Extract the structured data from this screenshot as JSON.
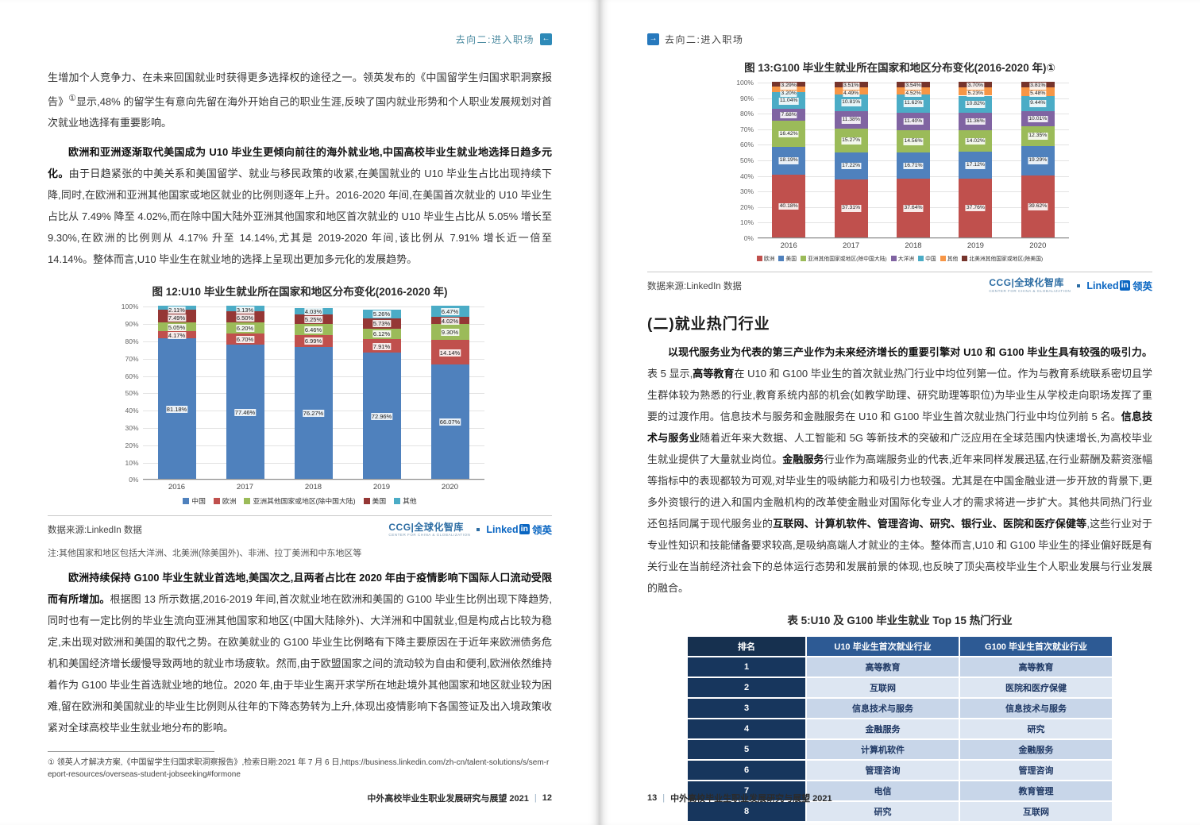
{
  "header": {
    "label": "去向二:进入职场"
  },
  "left_page": {
    "para1": [
      {
        "text": "生增加个人竞争力、在未来回国就业时获得更多选择权的途径之一。领英发布的《中国留学生归国求职洞察报告》",
        "bold": false
      },
      {
        "text": "①",
        "bold": false,
        "sup": true
      },
      {
        "text": "显示,48% 的留学生有意向先留在海外开始自己的职业生涯,反映了国内就业形势和个人职业发展规划对首次就业地选择有重要影响。",
        "bold": false
      }
    ],
    "para2": [
      {
        "text": "欧洲和亚洲逐渐取代美国成为 U10 毕业生更倾向前往的海外就业地,中国高校毕业生就业地选择日趋多元化。",
        "bold": true
      },
      {
        "text": "由于日趋紧张的中美关系和美国留学、就业与移民政策的收紧,在美国就业的 U10 毕业生占比出现持续下降,同时,在欧洲和亚洲其他国家或地区就业的比例则逐年上升。2016-2020 年间,在美国首次就业的 U10 毕业生占比从 7.49% 降至 4.02%,而在除中国大陆外亚洲其他国家和地区首次就业的 U10 毕业生占比从 5.05% 增长至 9.30%,在欧洲的比例则从 4.17% 升至 14.14%,尤其是 2019-2020 年间,该比例从 7.91% 增长近一倍至 14.14%。整体而言,U10 毕业生在就业地的选择上呈现出更加多元化的发展趋势。",
        "bold": false
      }
    ],
    "note": "注:其他国家和地区包括大洋洲、北美洲(除美国外)、非洲、拉丁美洲和中东地区等",
    "para3": [
      {
        "text": "欧洲持续保持 G100 毕业生就业首选地,美国次之,且两者占比在 2020 年由于疫情影响下国际人口流动受限而有所增加。",
        "bold": true
      },
      {
        "text": "根据图 13 所示数据,2016-2019 年间,首次就业地在欧洲和美国的 G100 毕业生比例出现下降趋势,同时也有一定比例的毕业生流向亚洲其他国家和地区(中国大陆除外)、大洋洲和中国就业,但是构成占比较为稳定,未出现对欧洲和美国的取代之势。在欧美就业的 G100 毕业生比例略有下降主要原因在于近年来欧洲债务危机和美国经济增长缓慢导致两地的就业市场疲软。然而,由于欧盟国家之间的流动较为自由和便利,欧洲依然维持着作为 G100 毕业生首选就业地的地位。2020 年,由于毕业生离开求学所在地赴境外其他国家和地区就业较为困难,留在欧洲和美国就业的毕业生比例则从往年的下降态势转为上升,体现出疫情影响下各国签证及出入境政策收紧对全球高校毕业生就业地分布的影响。",
        "bold": false
      }
    ],
    "source": "数据来源:LinkedIn 数据",
    "footnote": "① 领英人才解决方案,《中国留学生归国求职洞察报告》,检索日期:2021 年 7 月 6 日,https://business.linkedin.com/zh-cn/talent-solutions/s/sem-report-resources/overseas-student-jobseeking#formone",
    "footer_title": "中外高校毕业生职业发展研究与展望 2021",
    "footer_page": "12"
  },
  "right_page": {
    "heading": "(二)就业热门行业",
    "para": [
      {
        "text": "以现代服务业为代表的第三产业作为未来经济增长的重要引擎对 U10 和 G100 毕业生具有较强的吸引力。",
        "bold": true
      },
      {
        "text": "表 5 显示,",
        "bold": false
      },
      {
        "text": "高等教育",
        "bold": true
      },
      {
        "text": "在 U10 和 G100 毕业生的首次就业热门行业中均位列第一位。作为与教育系统联系密切且学生群体较为熟悉的行业,教育系统内部的机会(如教学助理、研究助理等职位)为毕业生从学校走向职场发挥了重要的过渡作用。信息技术与服务和金融服务在 U10 和 G100 毕业生首次就业热门行业中均位列前 5 名。",
        "bold": false
      },
      {
        "text": "信息技术与服务业",
        "bold": true
      },
      {
        "text": "随着近年来大数据、人工智能和 5G 等新技术的突破和广泛应用在全球范围内快速增长,为高校毕业生就业提供了大量就业岗位。",
        "bold": false
      },
      {
        "text": "金融服务",
        "bold": true
      },
      {
        "text": "行业作为高端服务业的代表,近年来同样发展迅猛,在行业薪酬及薪资涨幅等指标中的表现都较为可观,对毕业生的吸纳能力和吸引力也较强。尤其是在中国金融业进一步开放的背景下,更多外资银行的进入和国内金融机构的改革使金融业对国际化专业人才的需求将进一步扩大。其他共同热门行业还包括同属于现代服务业的",
        "bold": false
      },
      {
        "text": "互联网、计算机软件、管理咨询、研究、银行业、医院和医疗保健等",
        "bold": true
      },
      {
        "text": ",这些行业对于专业性知识和技能储备要求较高,是吸纳高端人才就业的主体。整体而言,U10 和 G100 毕业生的择业偏好既是有关行业在当前经济社会下的总体运行态势和发展前景的体现,也反映了顶尖高校毕业生个人职业发展与行业发展的融合。",
        "bold": false
      }
    ],
    "source": "数据来源:LinkedIn 数据",
    "table": {
      "title": "表 5:U10 及 G100 毕业生就业 Top 15 热门行业",
      "headers": [
        "排名",
        "U10 毕业生首次就业行业",
        "G100 毕业生首次就业行业"
      ],
      "rows": [
        [
          "1",
          "高等教育",
          "高等教育"
        ],
        [
          "2",
          "互联网",
          "医院和医疗保健"
        ],
        [
          "3",
          "信息技术与服务",
          "信息技术与服务"
        ],
        [
          "4",
          "金融服务",
          "研究"
        ],
        [
          "5",
          "计算机软件",
          "金融服务"
        ],
        [
          "6",
          "管理咨询",
          "管理咨询"
        ],
        [
          "7",
          "电信",
          "教育管理"
        ],
        [
          "8",
          "研究",
          "互联网"
        ]
      ]
    },
    "footer_title": "中外高校毕业生职业发展研究与展望 2021",
    "footer_page": "13"
  },
  "logos": {
    "ccg_main": "CCG|全球化智库",
    "ccg_sub": "CENTER FOR CHINA & GLOBALIZATION",
    "li_word": "Linked",
    "li_in": "in",
    "li_cn": "领英"
  },
  "chart_data": [
    {
      "type": "bar",
      "stacked": true,
      "title": "图 12:U10 毕业生就业所在国家和地区分布变化(2016-2020 年)",
      "categories": [
        "2016",
        "2017",
        "2018",
        "2019",
        "2020"
      ],
      "series": [
        {
          "name": "中国",
          "color": "#4f81bd",
          "values": [
            81.18,
            77.46,
            76.27,
            72.96,
            66.07
          ]
        },
        {
          "name": "欧洲",
          "color": "#c0504d",
          "values": [
            4.17,
            6.7,
            6.99,
            7.91,
            14.14
          ]
        },
        {
          "name": "亚洲其他国家或地区(除中国大陆)",
          "color": "#9bbb59",
          "values": [
            5.05,
            6.2,
            6.46,
            6.12,
            9.3
          ]
        },
        {
          "name": "美国",
          "color": "#953735",
          "values": [
            7.49,
            6.5,
            5.25,
            5.73,
            4.02
          ]
        },
        {
          "name": "其他",
          "color": "#4bacc6",
          "values": [
            2.11,
            3.13,
            4.03,
            5.26,
            6.47
          ]
        }
      ],
      "xlabel": "",
      "ylabel": "",
      "ylim": [
        0,
        100
      ],
      "ytick_step": 10,
      "grid": true,
      "legend_position": "bottom"
    },
    {
      "type": "bar",
      "stacked": true,
      "title": "图 13:G100 毕业生就业所在国家和地区分布变化(2016-2020 年)①",
      "categories": [
        "2016",
        "2017",
        "2018",
        "2019",
        "2020"
      ],
      "series": [
        {
          "name": "欧洲",
          "color": "#c0504d",
          "values": [
            40.18,
            37.31,
            37.64,
            37.76,
            39.62
          ]
        },
        {
          "name": "美国",
          "color": "#4f81bd",
          "values": [
            18.19,
            17.22,
            16.71,
            17.12,
            19.29
          ]
        },
        {
          "name": "亚洲其他国家或地区(除中国大陆)",
          "color": "#9bbb59",
          "values": [
            16.42,
            15.27,
            14.56,
            14.02,
            12.35
          ]
        },
        {
          "name": "大洋洲",
          "color": "#8064a2",
          "values": [
            7.68,
            11.38,
            11.4,
            11.36,
            10.01
          ]
        },
        {
          "name": "中国",
          "color": "#4bacc6",
          "values": [
            11.04,
            10.81,
            11.62,
            10.82,
            9.44
          ]
        },
        {
          "name": "其他",
          "color": "#f79646",
          "values": [
            3.2,
            4.49,
            4.52,
            5.23,
            5.48
          ]
        },
        {
          "name": "北美洲其他国家或地区(除美国)",
          "color": "#76342c",
          "values": [
            3.29,
            3.51,
            3.54,
            3.7,
            3.81
          ]
        }
      ],
      "xlabel": "",
      "ylabel": "",
      "ylim": [
        0,
        100
      ],
      "ytick_step": 10,
      "grid": true,
      "legend_position": "bottom"
    }
  ]
}
